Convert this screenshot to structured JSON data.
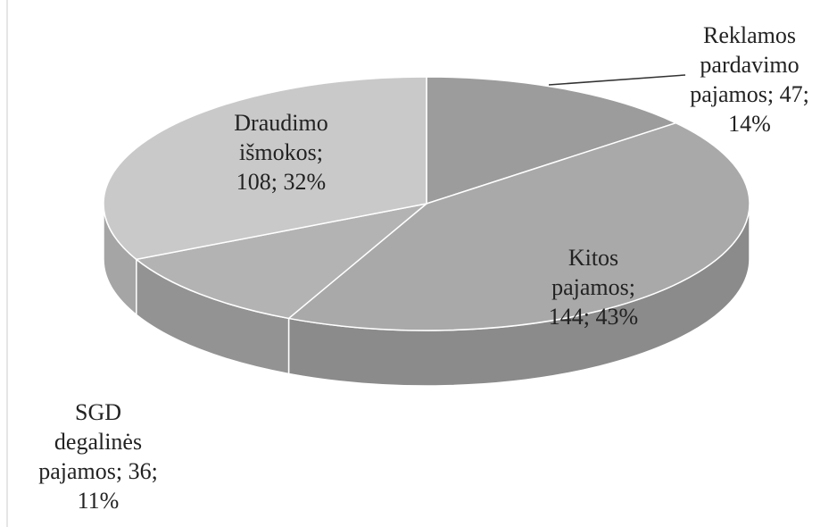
{
  "chart_data": {
    "type": "pie3d",
    "values": [
      47,
      144,
      36,
      108
    ],
    "value_labels": [
      "Reklamos\npardavimo\npajamos; 47;\n14%",
      "Kitos\npajamos;\n144; 43%",
      "SGD\ndegalinės\npajamos; 36;\n11%",
      "Draudimo\nišmokos;\n108; 32%"
    ],
    "colors": [
      "#9c9c9c",
      "#a9a9a9",
      "#b3b3b3",
      "#c9c9c9"
    ]
  }
}
